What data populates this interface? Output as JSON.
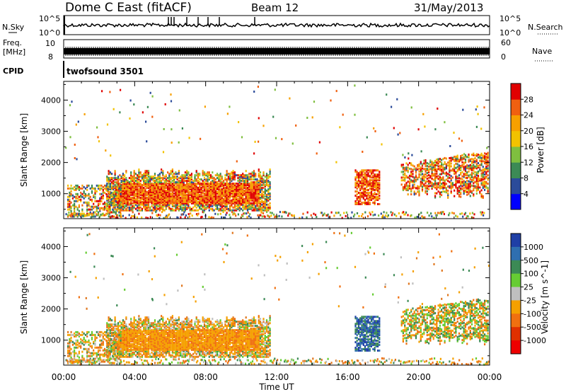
{
  "header": {
    "station": "Dome C East (fitACF)",
    "beam": "Beam 12",
    "date": "31/May/2013"
  },
  "top_panels": {
    "nsky_label": "N.Sky",
    "nsky_ticks": [
      "10^5",
      "10^0"
    ],
    "nsearch_label": "N.Search",
    "nsearch_ticks": [
      "10^5",
      "10^0"
    ],
    "freq_label_line1": "Freq.",
    "freq_label_line2": "[MHz]",
    "freq_ticks": [
      "10",
      "8"
    ],
    "nave_label": "Nave",
    "nave_ticks": [
      "60",
      "0"
    ],
    "cpid_label": "CPID",
    "cpid_value": "twofsound 3501"
  },
  "chart_data": [
    {
      "type": "heatmap",
      "panel": "power",
      "ylabel": "Slant Range [km]",
      "yticks": [
        "1000",
        "2000",
        "3000",
        "4000"
      ],
      "ylim": [
        200,
        4600
      ],
      "colorbar_label": "Power [dB]",
      "colorbar_ticks": [
        "4",
        "8",
        "12",
        "16",
        "20",
        "24",
        "28"
      ],
      "colors": [
        "#0000ff",
        "#2b4b9a",
        "#3c8a55",
        "#7fbf3f",
        "#f2c200",
        "#f7a000",
        "#f06010",
        "#e00000"
      ]
    },
    {
      "type": "heatmap",
      "panel": "velocity",
      "ylabel": "Slant Range [km]",
      "yticks": [
        "1000",
        "2000",
        "3000",
        "4000"
      ],
      "ylim": [
        200,
        4600
      ],
      "colorbar_label": "Velocity [m s^-1]",
      "colorbar_ticks": [
        "1000",
        "500",
        "100",
        "25",
        "-25",
        "-100",
        "-500",
        "-1000"
      ],
      "colors": [
        "#1f3fa6",
        "#2f6fb0",
        "#3c8a55",
        "#66cc33",
        "#bfbfbf",
        "#f5a000",
        "#f07010",
        "#e03000",
        "#ee0000"
      ]
    }
  ],
  "x_axis": {
    "ticks": [
      "00:00",
      "04:00",
      "08:00",
      "12:00",
      "16:00",
      "20:00",
      "00:00"
    ],
    "label": "Time UT"
  }
}
